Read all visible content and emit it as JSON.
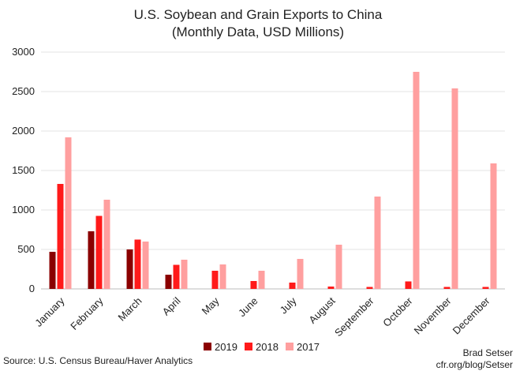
{
  "chart_data": {
    "type": "bar",
    "title": "U.S. Soybean and Grain Exports to China",
    "subtitle": "(Monthly Data, USD Millions)",
    "xlabel": "",
    "ylabel": "",
    "ylim": [
      0,
      3000
    ],
    "yticks": [
      0,
      500,
      1000,
      1500,
      2000,
      2500,
      3000
    ],
    "grid": true,
    "legend_position": "bottom",
    "categories": [
      "January",
      "February",
      "March",
      "April",
      "May",
      "June",
      "July",
      "August",
      "September",
      "October",
      "November",
      "December"
    ],
    "series": [
      {
        "name": "2019",
        "color": "#8b0000",
        "values": [
          470,
          730,
          500,
          180,
          null,
          null,
          null,
          null,
          null,
          null,
          null,
          null
        ]
      },
      {
        "name": "2018",
        "color": "#ff1a1a",
        "values": [
          1330,
          925,
          625,
          305,
          230,
          100,
          80,
          30,
          25,
          95,
          25,
          25
        ]
      },
      {
        "name": "2017",
        "color": "#ff9f9f",
        "values": [
          1920,
          1130,
          600,
          370,
          310,
          230,
          380,
          560,
          1170,
          2750,
          2540,
          1590
        ]
      }
    ]
  },
  "footer": {
    "source": "Source: U.S. Census Bureau/Haver Analytics",
    "credit_line1": "Brad Setser",
    "credit_line2": "cfr.org/blog/Setser"
  }
}
